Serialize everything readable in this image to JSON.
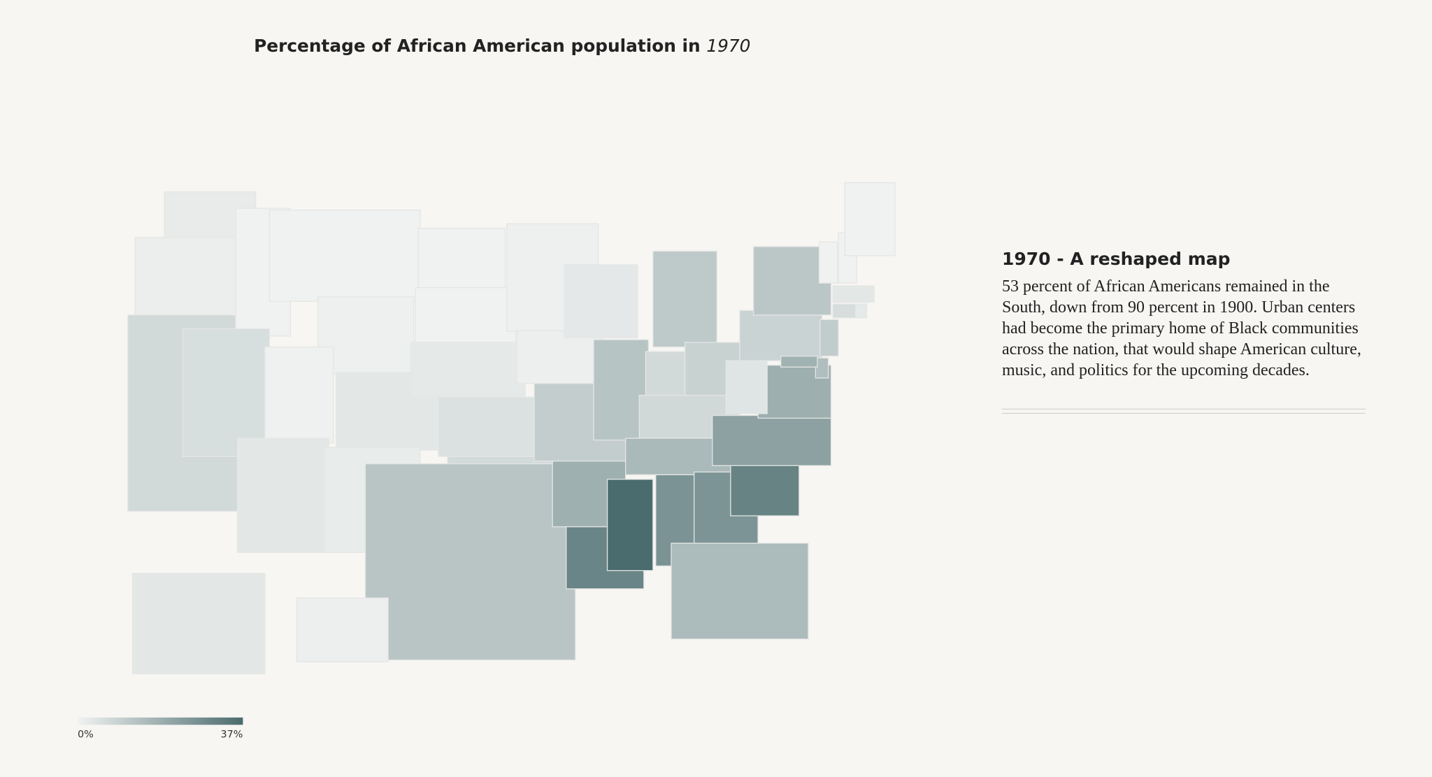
{
  "title": "Percentage of African American population in",
  "title_year": "1970",
  "legend": {
    "min": {
      "value": 0,
      "label": "0%"
    },
    "max": {
      "value": 37,
      "label": "37%"
    },
    "colors": [
      "#f1f3f2",
      "#4a6b6d"
    ]
  },
  "values": [
    2.1,
    1.3,
    7.0,
    0.3,
    5.7,
    0.3,
    0.8,
    0.6,
    3.0,
    3.0,
    1.9,
    0.4,
    0.2,
    2.7,
    4.8,
    6.7,
    12.5,
    0.9,
    1.2,
    10.3,
    18.3,
    29.8,
    2.9,
    12.8,
    11.2,
    6.9,
    9.1,
    7.2,
    15.8,
    36.8,
    26.2,
    25.9,
    15.3,
    30.5,
    22.2,
    18.5,
    3.9,
    8.6,
    11.9,
    10.7,
    14.3,
    17.8,
    0.2,
    0.3,
    0.3,
    3.1,
    6.0,
    2.7,
    3.0,
    1.0
  ],
  "sidebar": {
    "heading": "1970 - A reshaped map",
    "text": "53 percent of African Americans remained in the South, down from 90 percent in 1900. Urban centers had become the primary home of Black communities across the nation, that would shape American culture, music, and politics for the upcoming decades."
  }
}
